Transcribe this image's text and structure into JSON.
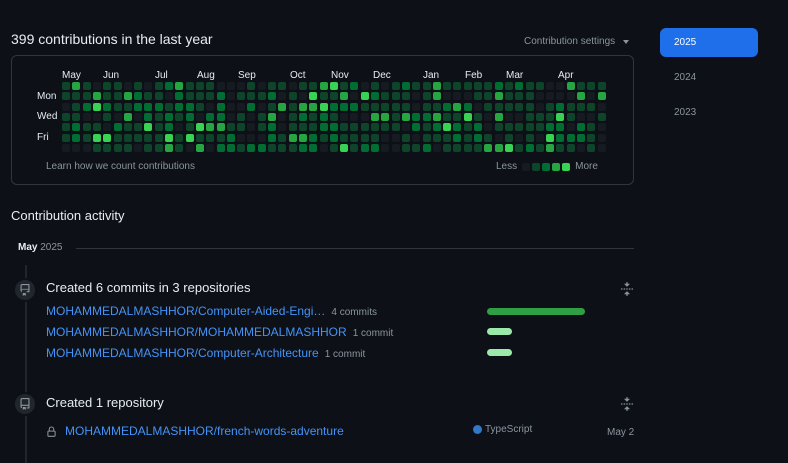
{
  "header": {
    "title": "399 contributions in the last year",
    "settings_label": "Contribution settings"
  },
  "graph": {
    "months": [
      "May",
      "Jun",
      "Jul",
      "Aug",
      "Sep",
      "Oct",
      "Nov",
      "Dec",
      "Jan",
      "Feb",
      "Mar",
      "Apr"
    ],
    "days": [
      "Mon",
      "Wed",
      "Fri"
    ],
    "learn_text": "Learn how we count contributions",
    "legend_less": "Less",
    "legend_more": "More",
    "colors": [
      "#161b22",
      "#0e4429",
      "#006d32",
      "#26a641",
      "#39d353"
    ]
  },
  "years": [
    "2025",
    "2024",
    "2023"
  ],
  "activity": {
    "title": "Contribution activity",
    "period_month": "May",
    "period_year": "2025",
    "commits_event": {
      "title": "Created 6 commits in 3 repositories",
      "repos": [
        {
          "name": "MOHAMMEDALMASHHOR/Computer-Aided-Engi…",
          "count": "4 commits",
          "share": 1.0,
          "color": "#2ea043"
        },
        {
          "name": "MOHAMMEDALMASHHOR/MOHAMMEDALMASHHOR",
          "count": "1 commit",
          "share": 0.25,
          "color": "#9be9a8"
        },
        {
          "name": "MOHAMMEDALMASHHOR/Computer-Architecture",
          "count": "1 commit",
          "share": 0.25,
          "color": "#9be9a8"
        }
      ]
    },
    "repo_event": {
      "title": "Created 1 repository",
      "repo_name": "MOHAMMEDALMASHHOR/french-words-adventure",
      "language": "TypeScript",
      "language_color": "#3178c6",
      "date": "May 2"
    }
  }
}
